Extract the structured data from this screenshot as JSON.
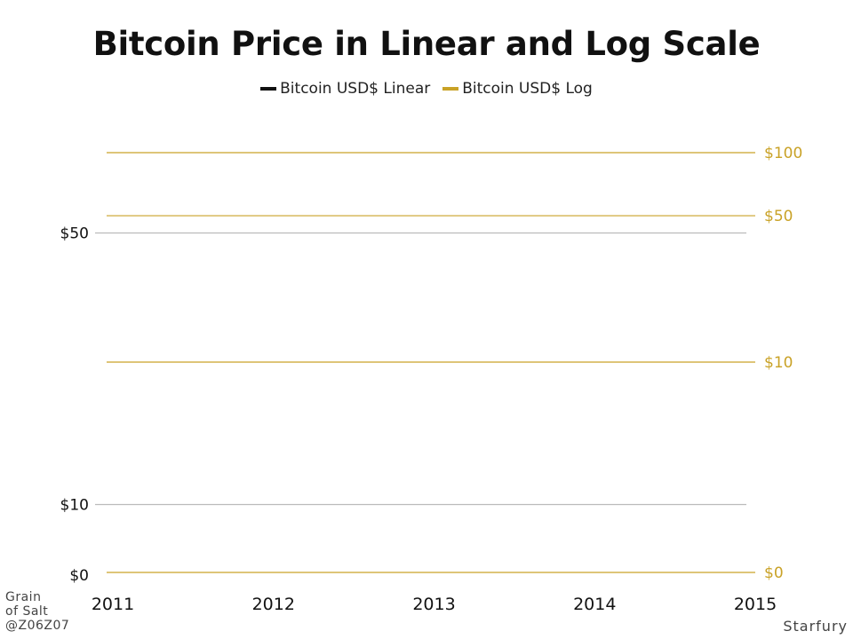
{
  "colors": {
    "linear": "#111111",
    "log": "#c9a227",
    "linear_grid": "#bbbbbb",
    "text": "#111111",
    "credit": "#444444"
  },
  "chart_data": {
    "type": "line",
    "title": "Bitcoin Price in Linear and Log Scale",
    "legend": [
      {
        "label": "Bitcoin USD$ Linear",
        "color": "#111111"
      },
      {
        "label": "Bitcoin USD$ Log",
        "color": "#c9a227"
      }
    ],
    "legend_position": "top-center",
    "x_ticks": [
      "2011",
      "2012",
      "2013",
      "2014",
      "2015"
    ],
    "xlim": [
      2011,
      2015
    ],
    "left_axis": {
      "scale": "linear",
      "ticks": [
        {
          "value": 0,
          "label": "$0"
        },
        {
          "value": 10,
          "label": "$10"
        },
        {
          "value": 50,
          "label": "$50"
        }
      ]
    },
    "right_axis": {
      "scale": "log",
      "ticks": [
        {
          "value": 0,
          "label": "$0"
        },
        {
          "value": 10,
          "label": "$10"
        },
        {
          "value": 50,
          "label": "$50"
        },
        {
          "value": 100,
          "label": "$100"
        }
      ]
    },
    "grid": true,
    "series": []
  },
  "credits": {
    "left_lines": [
      "Grain",
      "of Salt",
      "@Z06Z07"
    ],
    "right": "Starfury"
  }
}
